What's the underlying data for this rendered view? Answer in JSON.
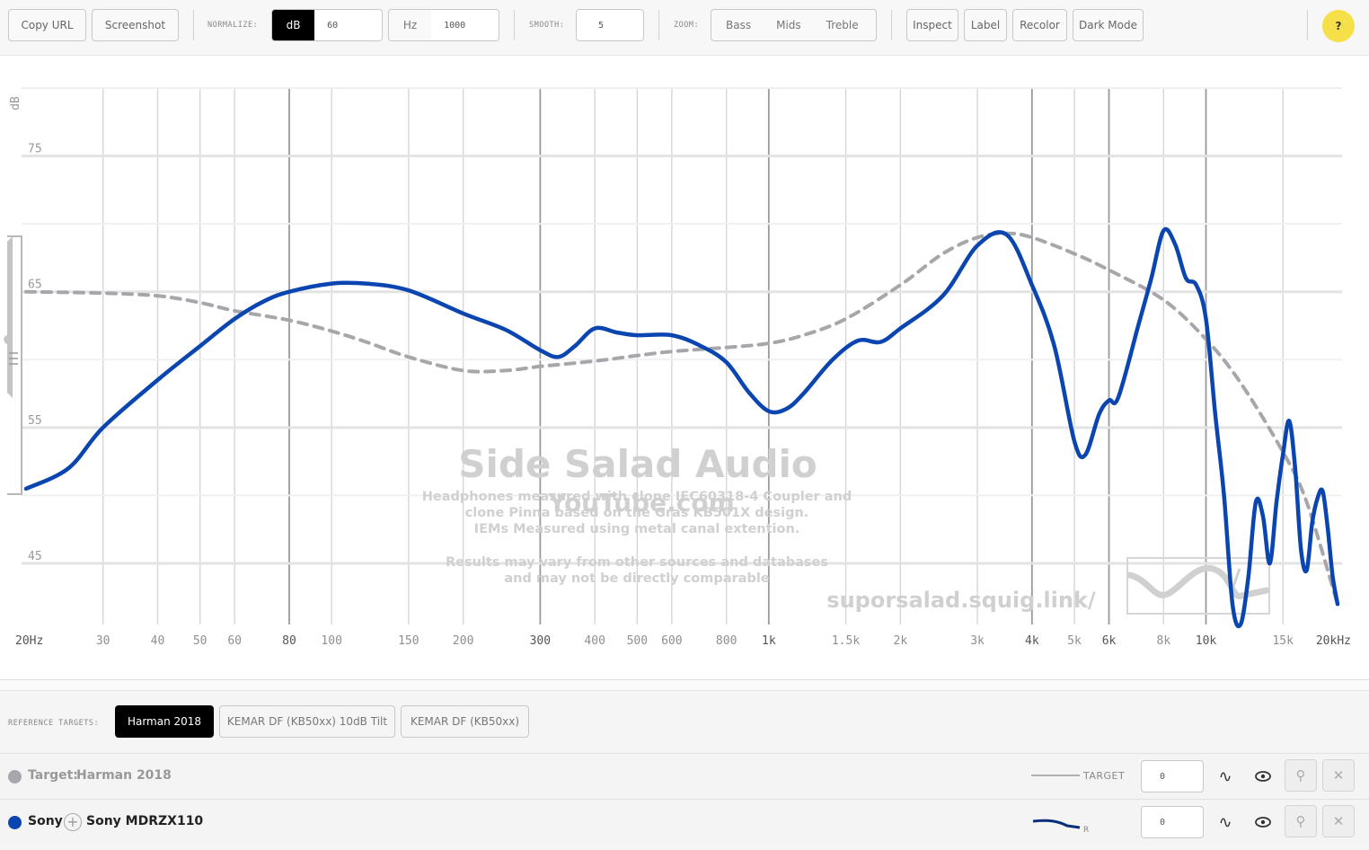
{
  "toolbar": {
    "copy_url": "Copy URL",
    "screenshot": "Screenshot",
    "normalize_label": "NORMALIZE:",
    "normalize_db": "dB",
    "normalize_db_value": "60",
    "normalize_hz": "Hz",
    "normalize_hz_value": "1000",
    "smooth_label": "SMOOTH:",
    "smooth_value": "5",
    "zoom_label": "ZOOM:",
    "zoom_options": [
      "Bass",
      "Mids",
      "Treble"
    ],
    "inspect": "Inspect",
    "label": "Label",
    "recolor": "Recolor",
    "dark_mode": "Dark Mode",
    "help": "?"
  },
  "watermark": {
    "title": "Side Salad Audio",
    "subtitle": "YouTube.com",
    "note_lines": [
      "Headphones measured with clone IEC60318-4 Coupler and",
      "clone Pinna based on the Gras KB501X design.",
      "IEMs Measured using metal canal extention.",
      "",
      "Results may vary from other sources and databases",
      "and may not be directly comparable"
    ],
    "site": "suporsalad.squig.link/"
  },
  "chart_data": {
    "type": "line",
    "xscale": "log",
    "xlim": [
      20,
      20000
    ],
    "ylim": [
      40.5,
      80
    ],
    "ylabel": "dB",
    "y_ticks": [
      "75",
      "65",
      "55",
      "45"
    ],
    "x_ticks": [
      "20Hz",
      "30",
      "40",
      "50",
      "60",
      "80",
      "100",
      "150",
      "200",
      "300",
      "400",
      "500",
      "600",
      "800",
      "1k",
      "1.5k",
      "2k",
      "3k",
      "4k",
      "5k",
      "6k",
      "8k",
      "10k",
      "15k",
      "20kHz"
    ],
    "series": [
      {
        "name": "Target: Harman 2018",
        "color": "#a9a6ab",
        "dashed": true,
        "points": [
          [
            20,
            65.0
          ],
          [
            30,
            64.9
          ],
          [
            40,
            64.7
          ],
          [
            50,
            64.2
          ],
          [
            60,
            63.6
          ],
          [
            80,
            62.9
          ],
          [
            100,
            62.1
          ],
          [
            120,
            61.3
          ],
          [
            150,
            60.2
          ],
          [
            200,
            59.2
          ],
          [
            250,
            59.2
          ],
          [
            300,
            59.5
          ],
          [
            400,
            59.9
          ],
          [
            500,
            60.3
          ],
          [
            600,
            60.6
          ],
          [
            800,
            60.9
          ],
          [
            1000,
            61.2
          ],
          [
            1200,
            61.8
          ],
          [
            1500,
            63.0
          ],
          [
            2000,
            65.5
          ],
          [
            2500,
            67.8
          ],
          [
            3000,
            69.0
          ],
          [
            3500,
            69.3
          ],
          [
            4000,
            69.0
          ],
          [
            5000,
            67.8
          ],
          [
            6000,
            66.6
          ],
          [
            8000,
            64.4
          ],
          [
            10000,
            61.5
          ],
          [
            12000,
            58.3
          ],
          [
            15000,
            53.2
          ],
          [
            17000,
            49.5
          ],
          [
            20000,
            42.0
          ]
        ]
      },
      {
        "name": "Sony MDRZX110",
        "color": "#0a45b0",
        "dashed": false,
        "points": [
          [
            20,
            50.5
          ],
          [
            25,
            52.0
          ],
          [
            30,
            55.0
          ],
          [
            40,
            58.5
          ],
          [
            50,
            61.0
          ],
          [
            60,
            63.0
          ],
          [
            70,
            64.3
          ],
          [
            80,
            65.0
          ],
          [
            100,
            65.6
          ],
          [
            120,
            65.6
          ],
          [
            150,
            65.1
          ],
          [
            200,
            63.4
          ],
          [
            250,
            62.2
          ],
          [
            300,
            60.7
          ],
          [
            330,
            60.2
          ],
          [
            360,
            61.0
          ],
          [
            400,
            62.3
          ],
          [
            450,
            62.0
          ],
          [
            500,
            61.8
          ],
          [
            600,
            61.8
          ],
          [
            700,
            61.0
          ],
          [
            800,
            59.8
          ],
          [
            900,
            57.6
          ],
          [
            1000,
            56.2
          ],
          [
            1100,
            56.4
          ],
          [
            1200,
            57.5
          ],
          [
            1400,
            60.0
          ],
          [
            1600,
            61.4
          ],
          [
            1800,
            61.3
          ],
          [
            2000,
            62.3
          ],
          [
            2500,
            64.7
          ],
          [
            3000,
            68.4
          ],
          [
            3500,
            69.2
          ],
          [
            4000,
            65.5
          ],
          [
            4500,
            61.0
          ],
          [
            5000,
            54.0
          ],
          [
            5300,
            53.0
          ],
          [
            5700,
            56.0
          ],
          [
            6000,
            57.0
          ],
          [
            6300,
            57.2
          ],
          [
            7000,
            62.5
          ],
          [
            7500,
            66.0
          ],
          [
            8000,
            69.5
          ],
          [
            8500,
            68.5
          ],
          [
            9000,
            66.0
          ],
          [
            9500,
            65.5
          ],
          [
            10000,
            63.0
          ],
          [
            10500,
            56.0
          ],
          [
            11000,
            50.0
          ],
          [
            11500,
            42.0
          ],
          [
            12000,
            40.5
          ],
          [
            12500,
            44.0
          ],
          [
            13000,
            49.5
          ],
          [
            13500,
            48.5
          ],
          [
            14000,
            45.0
          ],
          [
            14500,
            49.5
          ],
          [
            15000,
            53.0
          ],
          [
            15500,
            55.5
          ],
          [
            16000,
            52.0
          ],
          [
            16500,
            46.0
          ],
          [
            17000,
            44.5
          ],
          [
            17500,
            48.0
          ],
          [
            18000,
            49.8
          ],
          [
            18500,
            50.3
          ],
          [
            19000,
            47.5
          ],
          [
            19500,
            44.0
          ],
          [
            20000,
            42.0
          ]
        ]
      }
    ]
  },
  "targets": {
    "label": "REFERENCE TARGETS:",
    "items": [
      "Harman 2018",
      "KEMAR DF (KB50xx) 10dB Tilt",
      "KEMAR DF (KB50xx)"
    ]
  },
  "rows": {
    "target": {
      "prefix": "Target:",
      "name": "Harman 2018",
      "line_label": "TARGET",
      "offset": "0",
      "color": "#a9a6ab"
    },
    "phone": {
      "brand": "Sony",
      "model": "Sony MDRZX110",
      "channel": "R",
      "offset": "0",
      "color": "#0a45b0"
    }
  }
}
